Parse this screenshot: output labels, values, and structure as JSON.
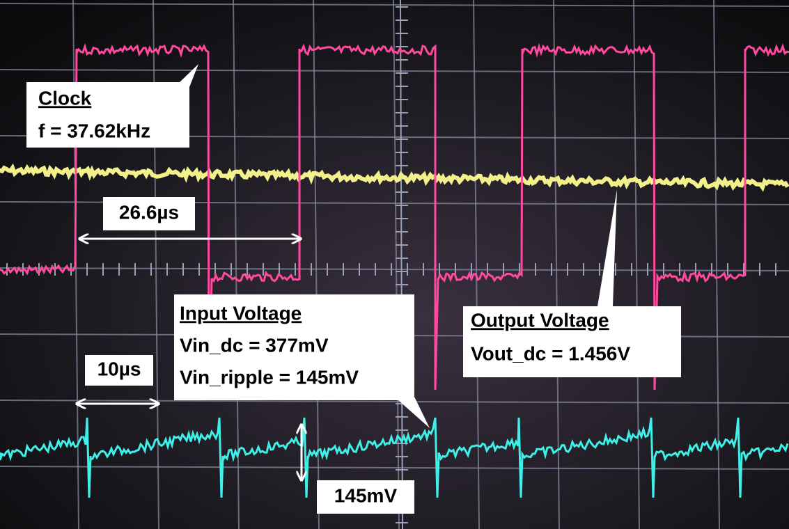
{
  "callouts": [
    {
      "title": "Clock",
      "lines": [
        "f = 37.62kHz"
      ]
    },
    {
      "title": "Input Voltage",
      "lines": [
        "Vin_dc = 377mV",
        "Vin_ripple = 145mV"
      ]
    },
    {
      "title": "Output Voltage",
      "lines": [
        "Vout_dc = 1.456V"
      ]
    }
  ],
  "measurements": [
    "26.6µs",
    "10µs",
    "145mV"
  ]
}
